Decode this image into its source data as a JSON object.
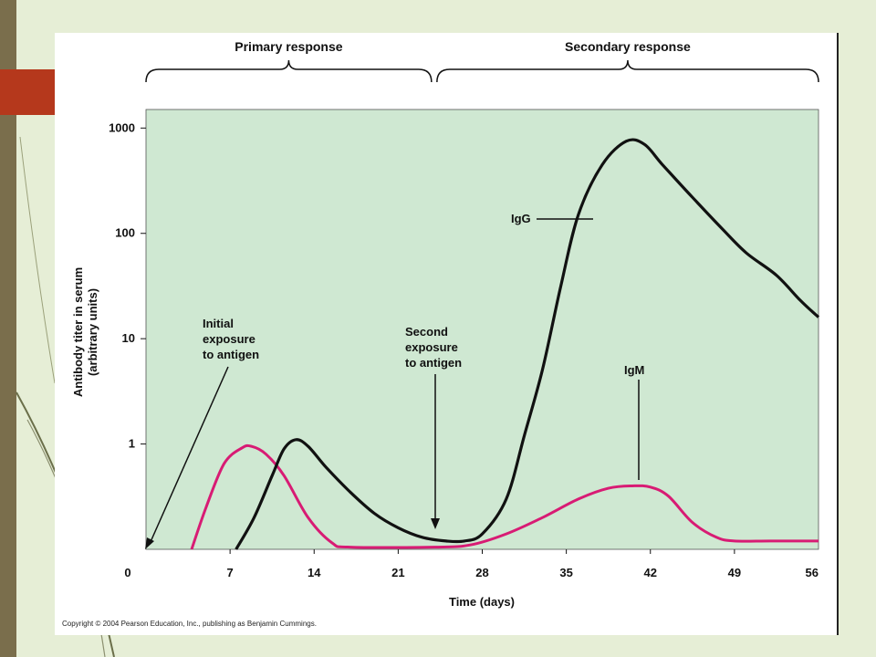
{
  "slide": {
    "accent_color": "#b5381c",
    "stripe_color": "#7a6e4c",
    "background_color": "#e6eed6"
  },
  "figure": {
    "copyright": "Copyright © 2004 Pearson Education, Inc., publishing as Benjamin Cummings.",
    "phases": [
      {
        "label": "Primary response",
        "range": [
          0,
          24
        ]
      },
      {
        "label": "Secondary response",
        "range": [
          24,
          56
        ]
      }
    ],
    "annotations": {
      "initial": [
        "Initial",
        "exposure",
        "to antigen"
      ],
      "second": [
        "Second",
        "exposure",
        "to antigen"
      ]
    }
  },
  "chart_data": {
    "type": "line",
    "x_label": "Time (days)",
    "y_label": [
      "Antibody titer in serum",
      "(arbitrary units)"
    ],
    "x_ticks": [
      0,
      7,
      14,
      21,
      28,
      35,
      42,
      49,
      56
    ],
    "x_lim": [
      0,
      56
    ],
    "y_scale": "log",
    "y_lim": [
      0.1,
      1500
    ],
    "y_ticks": [
      {
        "value": 1,
        "label": "1"
      },
      {
        "value": 10,
        "label": "10"
      },
      {
        "value": 100,
        "label": "100"
      },
      {
        "value": 1000,
        "label": "1000"
      }
    ],
    "plot_background": "#cfe8d2",
    "series": [
      {
        "name": "IgG",
        "color": "#111111",
        "points": [
          [
            7.5,
            0.1
          ],
          [
            9,
            0.2
          ],
          [
            10.5,
            0.5
          ],
          [
            11.5,
            0.9
          ],
          [
            12.5,
            1.1
          ],
          [
            13.5,
            0.95
          ],
          [
            15,
            0.6
          ],
          [
            17,
            0.35
          ],
          [
            19,
            0.22
          ],
          [
            21,
            0.16
          ],
          [
            23,
            0.13
          ],
          [
            25,
            0.12
          ],
          [
            26.5,
            0.12
          ],
          [
            28,
            0.14
          ],
          [
            30,
            0.3
          ],
          [
            31.5,
            1.2
          ],
          [
            33,
            5
          ],
          [
            34.5,
            30
          ],
          [
            36,
            150
          ],
          [
            38,
            450
          ],
          [
            40,
            750
          ],
          [
            41.5,
            700
          ],
          [
            43,
            450
          ],
          [
            45.5,
            220
          ],
          [
            48,
            110
          ],
          [
            50,
            65
          ],
          [
            52.5,
            40
          ],
          [
            54.5,
            23
          ],
          [
            56,
            16
          ]
        ]
      },
      {
        "name": "IgM",
        "color": "#d81b74",
        "points": [
          [
            3.8,
            0.1
          ],
          [
            5,
            0.25
          ],
          [
            6.5,
            0.65
          ],
          [
            8,
            0.92
          ],
          [
            8.8,
            0.95
          ],
          [
            10,
            0.8
          ],
          [
            11.5,
            0.5
          ],
          [
            13.5,
            0.2
          ],
          [
            15.5,
            0.115
          ],
          [
            17,
            0.105
          ],
          [
            24,
            0.105
          ],
          [
            27,
            0.11
          ],
          [
            30,
            0.14
          ],
          [
            33,
            0.2
          ],
          [
            36,
            0.3
          ],
          [
            38.5,
            0.38
          ],
          [
            40.5,
            0.4
          ],
          [
            42,
            0.39
          ],
          [
            43.5,
            0.32
          ],
          [
            45.5,
            0.18
          ],
          [
            47.5,
            0.13
          ],
          [
            49,
            0.12
          ],
          [
            52,
            0.12
          ],
          [
            56,
            0.12
          ]
        ]
      }
    ],
    "series_labels": {
      "IgG": "IgG",
      "IgM": "IgM"
    }
  }
}
